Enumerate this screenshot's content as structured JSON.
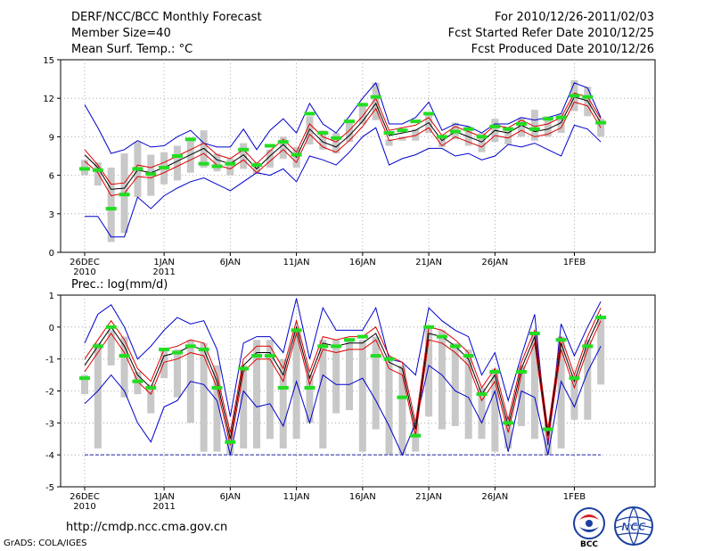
{
  "header": {
    "title": "DERF/NCC/BCC Monthly Forecast",
    "member_size": "Member Size=40",
    "period": "For 2010/12/26-2011/02/03",
    "fcst_started": "Fcst Started Refer Date 2010/12/25",
    "fcst_produced": "Fcst Produced Date 2010/12/26"
  },
  "footer": {
    "url": "http://cmdp.ncc.cma.gov.cn",
    "grads": "GrADS: COLA/IGES",
    "logo_bcc": "BCC",
    "logo_ncc": "NCC"
  },
  "colors": {
    "upper": "#0000cc",
    "lower": "#0000cc",
    "mean": "#000000",
    "inner": "#dd0000",
    "bar": "#c8c8c8",
    "obs": "#22dd22",
    "dashed": "#2222aa",
    "grid": "#999999"
  },
  "chart_data": [
    {
      "type": "line",
      "title": "Mean Surf. Temp.: °C",
      "ylim": [
        0,
        15
      ],
      "yticks": [
        0,
        3,
        6,
        9,
        12,
        15
      ],
      "xlim": [
        0,
        40
      ],
      "xticks": [
        {
          "x": 0,
          "label": "26DEC",
          "sub": "2010"
        },
        {
          "x": 6,
          "label": "1JAN",
          "sub": "2011"
        },
        {
          "x": 11,
          "label": "6JAN",
          "sub": ""
        },
        {
          "x": 16,
          "label": "11JAN",
          "sub": ""
        },
        {
          "x": 21,
          "label": "16JAN",
          "sub": ""
        },
        {
          "x": 26,
          "label": "21JAN",
          "sub": ""
        },
        {
          "x": 31,
          "label": "26JAN",
          "sub": ""
        },
        {
          "x": 37,
          "label": "1FEB",
          "sub": ""
        }
      ],
      "x": [
        0,
        1,
        2,
        3,
        4,
        5,
        6,
        7,
        8,
        9,
        10,
        11,
        12,
        13,
        14,
        15,
        16,
        17,
        18,
        19,
        20,
        21,
        22,
        23,
        24,
        25,
        26,
        27,
        28,
        29,
        30,
        31,
        32,
        33,
        34,
        35,
        36,
        37,
        38,
        39
      ],
      "series": [
        {
          "name": "upper",
          "values": [
            11.5,
            9.7,
            7.7,
            8.0,
            8.7,
            8.2,
            8.3,
            9.0,
            9.5,
            8.5,
            8.2,
            8.2,
            9.6,
            8.0,
            9.5,
            10.4,
            9.3,
            11.6,
            10.0,
            9.3,
            10.6,
            12.0,
            13.2,
            10.0,
            10.0,
            10.5,
            11.7,
            9.5,
            10.0,
            9.8,
            9.3,
            10.0,
            10.0,
            10.5,
            10.3,
            10.5,
            10.8,
            13.2,
            12.8,
            10.5
          ]
        },
        {
          "name": "lower",
          "values": [
            2.8,
            2.8,
            1.2,
            1.2,
            4.3,
            3.4,
            4.4,
            5.0,
            5.5,
            5.8,
            5.3,
            4.8,
            5.5,
            6.2,
            6.0,
            6.5,
            5.5,
            7.5,
            7.2,
            6.8,
            7.8,
            9.0,
            9.7,
            6.8,
            7.3,
            7.6,
            8.1,
            8.1,
            7.5,
            7.7,
            7.2,
            7.5,
            8.4,
            8.2,
            8.5,
            8.0,
            7.5,
            9.9,
            9.6,
            8.6
          ]
        },
        {
          "name": "mean",
          "values": [
            7.6,
            6.6,
            4.9,
            5.0,
            6.4,
            6.2,
            6.6,
            7.1,
            7.6,
            8.1,
            7.2,
            6.9,
            7.6,
            6.5,
            7.5,
            8.4,
            7.4,
            9.6,
            8.6,
            8.2,
            9.1,
            10.2,
            11.6,
            9.1,
            9.3,
            9.5,
            10.1,
            8.7,
            9.4,
            9.0,
            8.6,
            9.5,
            9.3,
            9.9,
            9.4,
            9.6,
            10.1,
            12.1,
            11.8,
            10.1
          ]
        },
        {
          "name": "inner_upper",
          "values": [
            8.0,
            6.8,
            5.3,
            5.4,
            6.8,
            6.6,
            7.0,
            7.5,
            8.0,
            8.5,
            7.6,
            7.3,
            8.0,
            6.9,
            7.9,
            8.8,
            7.8,
            10.0,
            9.0,
            8.6,
            9.5,
            10.6,
            12.0,
            9.5,
            9.7,
            9.9,
            10.5,
            9.1,
            9.8,
            9.4,
            9.0,
            9.9,
            9.7,
            10.3,
            9.8,
            10.0,
            10.5,
            12.4,
            12.1,
            10.4
          ]
        },
        {
          "name": "inner_lower",
          "values": [
            7.1,
            6.2,
            4.4,
            4.6,
            5.9,
            5.8,
            6.2,
            6.7,
            7.2,
            7.7,
            6.8,
            6.5,
            7.2,
            6.2,
            7.1,
            8.0,
            7.0,
            9.2,
            8.2,
            7.8,
            8.7,
            9.8,
            11.2,
            8.7,
            8.9,
            9.1,
            9.7,
            8.3,
            9.0,
            8.6,
            8.2,
            9.1,
            8.9,
            9.5,
            9.0,
            9.2,
            9.7,
            11.7,
            11.4,
            9.7
          ]
        },
        {
          "name": "obs",
          "values": [
            6.5,
            6.4,
            3.4,
            4.5,
            6.5,
            6.1,
            6.6,
            7.5,
            8.8,
            6.9,
            6.7,
            6.9,
            8.0,
            6.8,
            8.3,
            8.6,
            7.6,
            10.8,
            9.3,
            8.9,
            10.2,
            11.5,
            12.1,
            9.3,
            9.5,
            10.2,
            10.8,
            9.0,
            9.4,
            9.6,
            9.0,
            9.8,
            9.6,
            10.0,
            9.6,
            10.4,
            10.5,
            12.2,
            12.1,
            10.1
          ]
        },
        {
          "name": "bar_top",
          "values": [
            7.2,
            7.0,
            6.6,
            7.7,
            8.6,
            7.6,
            7.8,
            8.3,
            8.8,
            9.5,
            7.7,
            7.3,
            8.5,
            7.0,
            8.0,
            9.0,
            8.2,
            10.6,
            9.5,
            9.3,
            10.2,
            11.5,
            13.2,
            8.8,
            9.0,
            9.6,
            10.8,
            9.0,
            10.1,
            9.8,
            9.3,
            10.4,
            9.7,
            10.5,
            11.1,
            10.6,
            10.8,
            13.4,
            12.9,
            10.4
          ]
        },
        {
          "name": "bar_bottom",
          "values": [
            6.0,
            5.2,
            0.8,
            1.5,
            4.3,
            4.4,
            5.3,
            5.6,
            6.2,
            6.6,
            6.3,
            6.0,
            6.5,
            6.1,
            6.6,
            7.3,
            6.6,
            8.4,
            8.0,
            7.7,
            8.6,
            10.0,
            10.3,
            8.3,
            8.7,
            8.7,
            9.3,
            8.2,
            8.8,
            8.3,
            7.8,
            8.6,
            8.4,
            9.0,
            8.7,
            9.0,
            9.3,
            11.0,
            10.6,
            9.0
          ]
        }
      ]
    },
    {
      "type": "line",
      "title": "Prec.: log(mm/d)",
      "ylim": [
        -5,
        1
      ],
      "yticks": [
        -5,
        -4,
        -3,
        -2,
        -1,
        0,
        1
      ],
      "xlim": [
        0,
        40
      ],
      "xticks": [
        {
          "x": 0,
          "label": "26DEC",
          "sub": "2010"
        },
        {
          "x": 6,
          "label": "1JAN",
          "sub": "2011"
        },
        {
          "x": 11,
          "label": "6JAN",
          "sub": ""
        },
        {
          "x": 16,
          "label": "11JAN",
          "sub": ""
        },
        {
          "x": 21,
          "label": "16JAN",
          "sub": ""
        },
        {
          "x": 26,
          "label": "21JAN",
          "sub": ""
        },
        {
          "x": 31,
          "label": "26JAN",
          "sub": ""
        },
        {
          "x": 37,
          "label": "1FEB",
          "sub": ""
        }
      ],
      "dashed_level": -4,
      "x": [
        0,
        1,
        2,
        3,
        4,
        5,
        6,
        7,
        8,
        9,
        10,
        11,
        12,
        13,
        14,
        15,
        16,
        17,
        18,
        19,
        20,
        21,
        22,
        23,
        24,
        25,
        26,
        27,
        28,
        29,
        30,
        31,
        32,
        33,
        34,
        35,
        36,
        37,
        38,
        39
      ],
      "series": [
        {
          "name": "upper",
          "values": [
            -0.5,
            0.4,
            0.7,
            0.0,
            -1.0,
            -0.6,
            -0.1,
            0.3,
            0.1,
            0.2,
            -0.7,
            -2.8,
            -0.5,
            -0.3,
            -0.3,
            -0.8,
            0.9,
            -1.0,
            0.6,
            -0.1,
            -0.1,
            -0.1,
            0.6,
            -1.0,
            -1.1,
            -1.5,
            0.6,
            0.2,
            -0.1,
            -0.3,
            -1.5,
            -0.8,
            -2.3,
            -0.9,
            0.4,
            -3.7,
            0.1,
            -0.9,
            0.0,
            0.8
          ]
        },
        {
          "name": "lower",
          "values": [
            -2.4,
            -2.0,
            -1.5,
            -2.0,
            -3.0,
            -3.6,
            -2.5,
            -2.3,
            -1.7,
            -1.8,
            -2.3,
            -4.0,
            -2.0,
            -2.5,
            -2.4,
            -3.1,
            -1.7,
            -3.0,
            -1.5,
            -1.8,
            -1.8,
            -1.6,
            -2.3,
            -3.1,
            -4.0,
            -3.0,
            -1.2,
            -1.5,
            -2.0,
            -2.2,
            -3.0,
            -2.0,
            -3.9,
            -2.0,
            -2.2,
            -4.0,
            -1.7,
            -2.5,
            -1.4,
            -0.6
          ]
        },
        {
          "name": "mean",
          "values": [
            -1.2,
            -0.6,
            0.0,
            -0.6,
            -1.5,
            -1.9,
            -0.9,
            -0.8,
            -0.6,
            -0.7,
            -1.7,
            -3.5,
            -1.2,
            -0.8,
            -0.8,
            -1.5,
            0.0,
            -1.6,
            -0.5,
            -0.6,
            -0.5,
            -0.5,
            -0.2,
            -1.1,
            -1.3,
            -3.2,
            -0.2,
            -0.3,
            -0.6,
            -1.0,
            -2.1,
            -1.5,
            -3.1,
            -1.3,
            -0.3,
            -3.4,
            -0.5,
            -1.7,
            -0.5,
            0.4
          ]
        },
        {
          "name": "inner_upper",
          "values": [
            -1.0,
            -0.4,
            0.2,
            -0.4,
            -1.3,
            -1.7,
            -0.7,
            -0.6,
            -0.4,
            -0.5,
            -1.5,
            -3.3,
            -1.0,
            -0.6,
            -0.6,
            -1.3,
            0.2,
            -1.4,
            -0.3,
            -0.4,
            -0.3,
            -0.3,
            0.0,
            -0.9,
            -1.1,
            -3.0,
            0.0,
            -0.1,
            -0.4,
            -0.8,
            -1.9,
            -1.3,
            -2.9,
            -1.1,
            -0.1,
            -3.2,
            -0.3,
            -1.5,
            -0.3,
            0.6
          ]
        },
        {
          "name": "inner_lower",
          "values": [
            -1.4,
            -0.8,
            -0.2,
            -0.8,
            -1.7,
            -2.1,
            -1.1,
            -1.0,
            -0.8,
            -0.9,
            -1.9,
            -3.7,
            -1.4,
            -1.0,
            -1.0,
            -1.7,
            -0.2,
            -1.8,
            -0.7,
            -0.8,
            -0.7,
            -0.7,
            -0.4,
            -1.3,
            -1.5,
            -3.4,
            -0.4,
            -0.5,
            -0.8,
            -1.2,
            -2.3,
            -1.7,
            -3.3,
            -1.5,
            -0.5,
            -3.6,
            -0.7,
            -1.9,
            -0.7,
            0.2
          ]
        },
        {
          "name": "obs",
          "values": [
            -1.6,
            -0.6,
            0.0,
            -0.9,
            -1.7,
            -1.9,
            -0.7,
            -0.8,
            -0.6,
            -0.7,
            -1.9,
            -3.6,
            -1.3,
            -0.9,
            -0.9,
            -1.9,
            -0.1,
            -1.9,
            -0.6,
            -0.6,
            -0.4,
            -0.3,
            -0.9,
            -1.0,
            -2.2,
            -3.4,
            0.0,
            -0.3,
            -0.6,
            -0.9,
            -2.1,
            -1.4,
            -3.0,
            -1.4,
            -0.2,
            -3.2,
            -0.4,
            -1.6,
            -0.6,
            0.3
          ]
        },
        {
          "name": "bar_top",
          "values": [
            -1.5,
            -0.5,
            -0.1,
            -0.3,
            -1.4,
            -1.8,
            -0.7,
            -0.7,
            -0.4,
            -0.5,
            -1.2,
            -3.2,
            -1.2,
            -0.4,
            -0.4,
            -1.0,
            -0.1,
            -1.5,
            -0.4,
            -0.4,
            -0.4,
            -0.4,
            -0.3,
            -1.0,
            -1.2,
            -3.0,
            0.0,
            -0.1,
            -0.5,
            -0.7,
            -1.9,
            -1.3,
            -2.8,
            -1.2,
            -0.2,
            -3.0,
            -0.3,
            -1.5,
            -0.4,
            0.3
          ]
        },
        {
          "name": "bar_bottom",
          "values": [
            -2.1,
            -3.8,
            -1.2,
            -2.2,
            -2.1,
            -2.7,
            -1.6,
            -2.2,
            -3.0,
            -3.9,
            -3.9,
            -4.0,
            -3.8,
            -3.8,
            -3.5,
            -3.8,
            -3.5,
            -3.0,
            -3.8,
            -2.7,
            -2.6,
            -3.9,
            -3.2,
            -4.0,
            -4.0,
            -3.9,
            -2.8,
            -3.2,
            -3.1,
            -3.5,
            -3.5,
            -3.9,
            -3.8,
            -3.1,
            -3.5,
            -4.0,
            -3.8,
            -2.9,
            -2.9,
            -1.8
          ]
        }
      ]
    }
  ]
}
